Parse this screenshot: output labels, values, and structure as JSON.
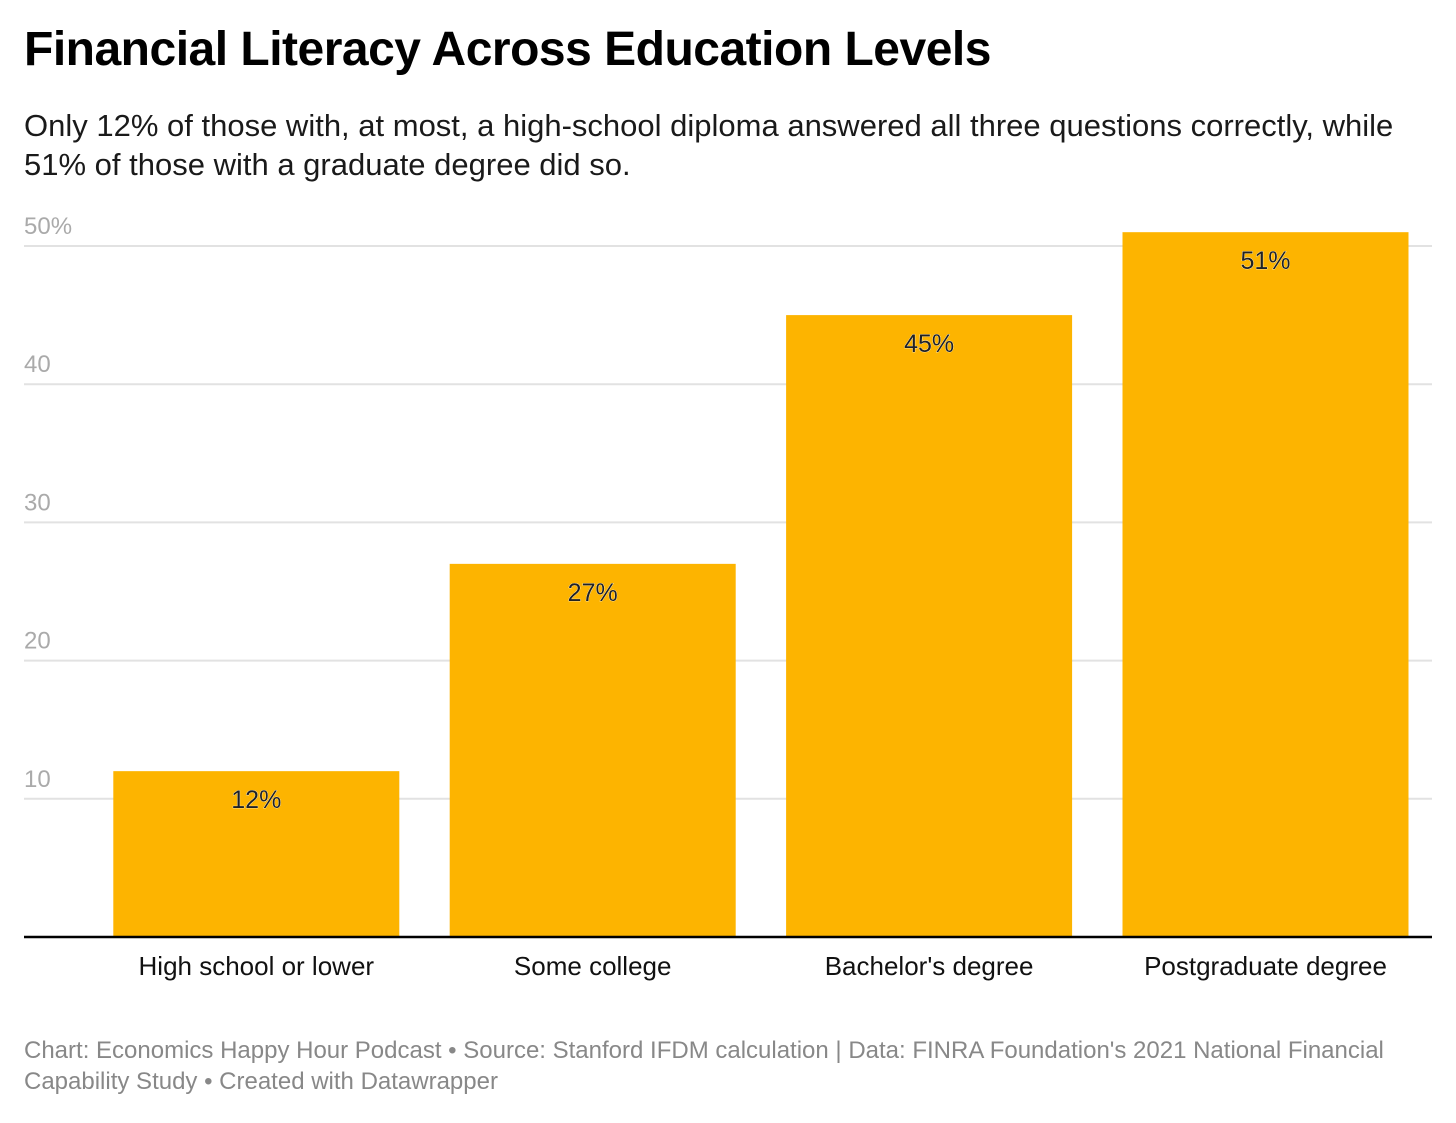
{
  "title": "Financial Literacy Across Education Levels",
  "subtitle": "Only 12% of those with, at most, a high-school diploma answered all three questions correctly, while 51% of those with a graduate degree did so.",
  "footer": "Chart: Economics Happy Hour Podcast • Source: Stanford IFDM calculation | Data: FINRA Foundation's 2021 National Financial Capability Study • Created with Datawrapper",
  "colors": {
    "bar": "#FDB400",
    "gridline": "#e2e2e2",
    "tick_label": "#aaaaaa",
    "baseline": "#000000",
    "value_label": "#222222"
  },
  "chart_data": {
    "type": "bar",
    "categories": [
      "High school or lower",
      "Some college",
      "Bachelor's degree",
      "Postgraduate degree"
    ],
    "values": [
      12,
      27,
      45,
      51
    ],
    "value_labels": [
      "12%",
      "27%",
      "45%",
      "51%"
    ],
    "yticks": [
      10,
      20,
      30,
      40,
      50
    ],
    "ytick_labels": [
      "10",
      "20",
      "30",
      "40",
      "50%"
    ],
    "ylim": [
      0,
      50
    ],
    "grid": true,
    "xlabel": "",
    "ylabel": ""
  }
}
